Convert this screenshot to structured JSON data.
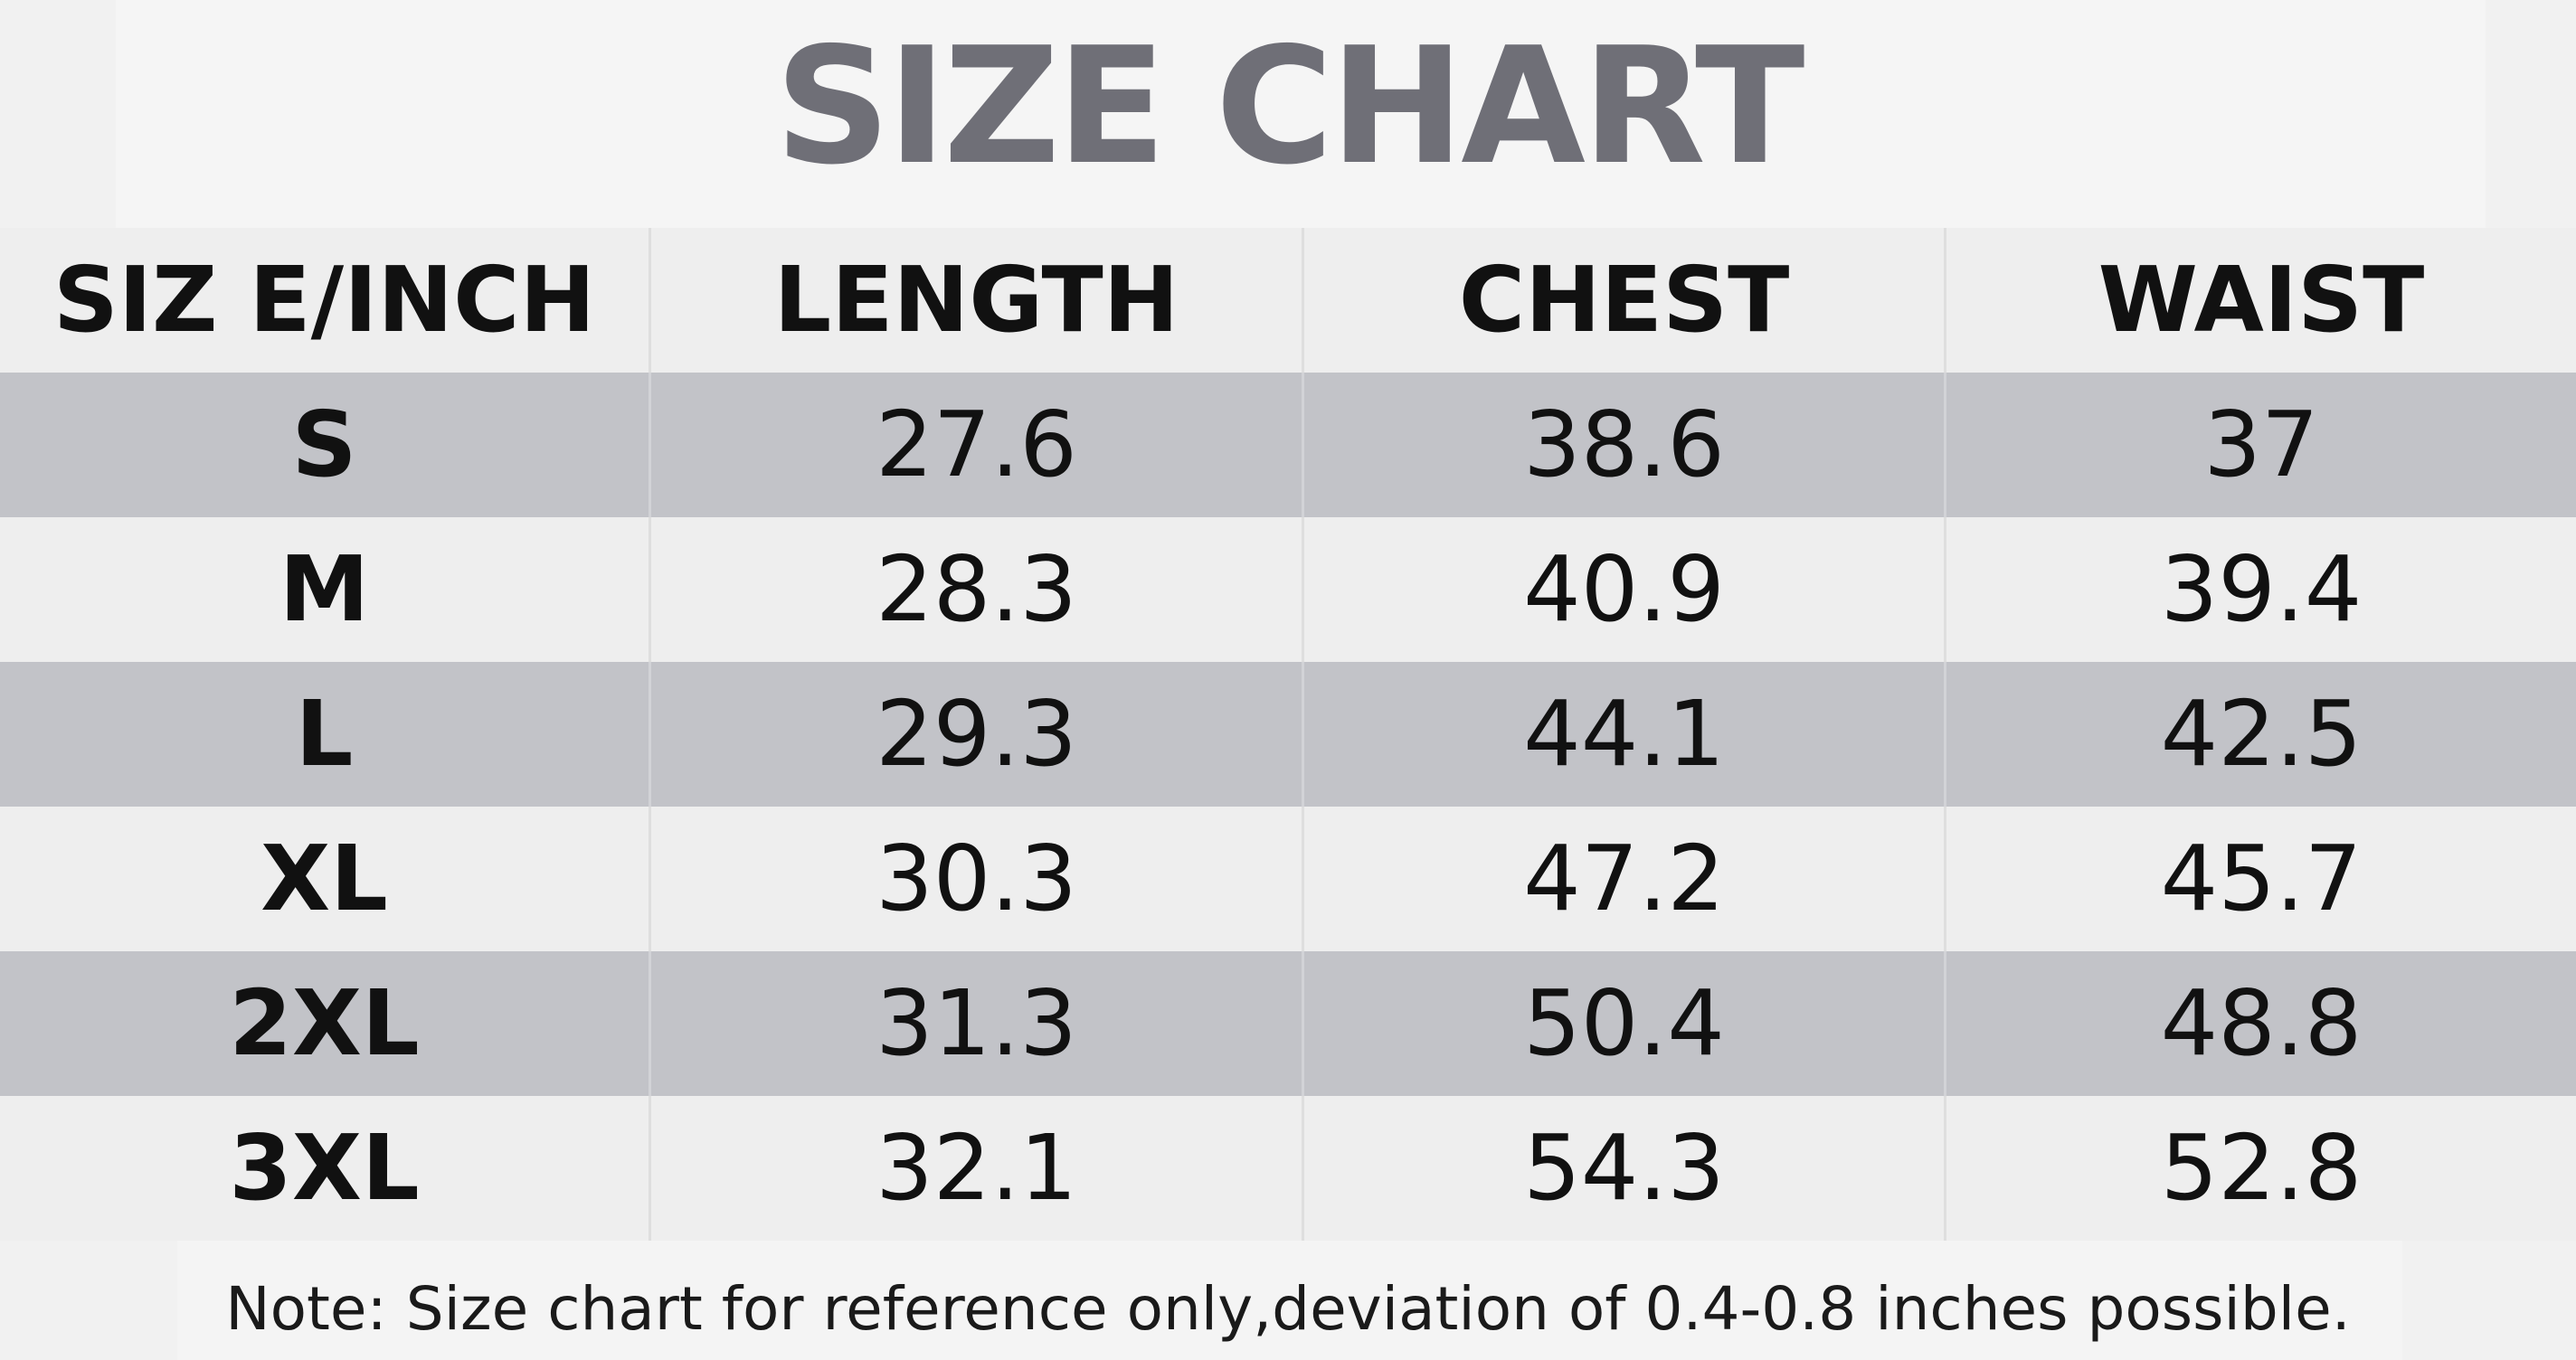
{
  "chart_data": {
    "type": "table",
    "title": "SIZE CHART",
    "columns": [
      "SIZ E/INCH",
      "LENGTH",
      "CHEST",
      "WAIST"
    ],
    "rows": [
      {
        "size": "S",
        "length": "27.6",
        "chest": "38.6",
        "waist": "37"
      },
      {
        "size": "M",
        "length": "28.3",
        "chest": "40.9",
        "waist": "39.4"
      },
      {
        "size": "L",
        "length": "29.3",
        "chest": "44.1",
        "waist": "42.5"
      },
      {
        "size": "XL",
        "length": "30.3",
        "chest": "47.2",
        "waist": "45.7"
      },
      {
        "size": "2XL",
        "length": "31.3",
        "chest": "50.4",
        "waist": "48.8"
      },
      {
        "size": "3XL",
        "length": "32.1",
        "chest": "54.3",
        "waist": "52.8"
      }
    ],
    "note": "Note: Size chart for reference only,deviation of 0.4-0.8 inches possible."
  },
  "colors": {
    "title": "#6f6f77",
    "shaded_row": "#c2c3c8",
    "plain_row": "#eeeeee",
    "text": "#111111"
  }
}
